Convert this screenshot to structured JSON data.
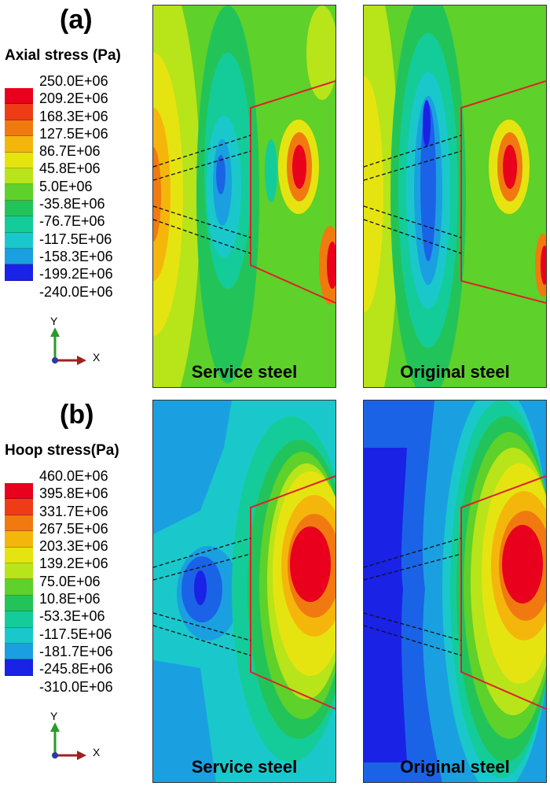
{
  "panel_a": {
    "label": "(a)",
    "legend_title": "Axial stress (Pa)",
    "legend_values": [
      "250.0E+06",
      "209.2E+06",
      "168.3E+06",
      "127.5E+06",
      "86.7E+06",
      "45.8E+06",
      "5.0E+06",
      "-35.8E+06",
      "-76.7E+06",
      "-117.5E+06",
      "-158.3E+06",
      "-199.2E+06",
      "-240.0E+06"
    ],
    "axis_y": "Y",
    "axis_x": "X",
    "caption_left": "Service steel",
    "caption_right": "Original steel"
  },
  "panel_b": {
    "label": "(b)",
    "legend_title": "Hoop stress(Pa)",
    "legend_values": [
      "460.0E+06",
      "395.8E+06",
      "331.7E+06",
      "267.5E+06",
      "203.3E+06",
      "139.2E+06",
      "75.0E+06",
      "10.8E+06",
      "-53.3E+06",
      "-117.5E+06",
      "-181.7E+06",
      "-245.8E+06",
      "-310.0E+06"
    ],
    "axis_y": "Y",
    "axis_x": "X",
    "caption_left": "Service steel",
    "caption_right": "Original steel"
  },
  "colormap": [
    "#e8001c",
    "#ee3d16",
    "#f07a10",
    "#f5b60c",
    "#e6e410",
    "#b8e41a",
    "#5ed12a",
    "#22c45a",
    "#14cc9a",
    "#1ac8cc",
    "#1aa0e0",
    "#1a63e6",
    "#1a22e6"
  ]
}
